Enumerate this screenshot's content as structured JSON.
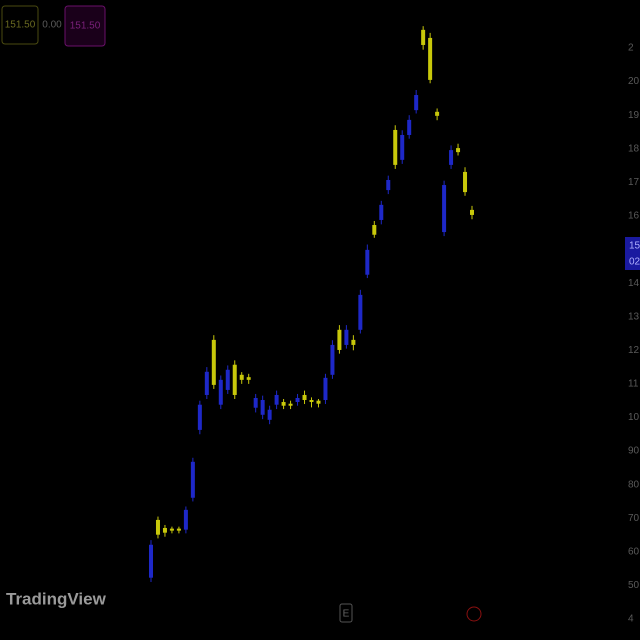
{
  "chart_data": {
    "type": "candlestick",
    "legend_values": [
      "151.50",
      "0.00",
      "151.50"
    ],
    "price_tag": [
      "15",
      "02"
    ],
    "logo": "TradingView",
    "event_marker": "E",
    "up_color": "#c8c80a",
    "down_color": "#1e28c8",
    "open": [
      62.1,
      65.1,
      65.7,
      66.3,
      66.3,
      72.5,
      86.8,
      103.8,
      113.6,
      109.7,
      111.2,
      114.2,
      106.7,
      111.2,
      111.2,
      105.8,
      105.2,
      102.3,
      106.7,
      103.5,
      103.5,
      105.8,
      105.2,
      104.6,
      104.1,
      111.8,
      121.6,
      120.1,
      126.1,
      121.6,
      136.5,
      149.9,
      154.4,
      163.3,
      170.7,
      175.2,
      184.1,
      188.6,
      196.0,
      210.9,
      200.5,
      189.8,
      169.2,
      179.6,
      179.0,
      167.1,
      160.3
    ],
    "high": [
      63.5,
      70.5,
      68.0,
      67.5,
      67.5,
      73.5,
      88.0,
      105.0,
      115.0,
      124.5,
      112.5,
      115.5,
      117.0,
      113.5,
      113.0,
      107.0,
      106.5,
      103.5,
      108.0,
      105.5,
      105.0,
      107.0,
      108.0,
      106.0,
      105.5,
      113.0,
      123.0,
      127.5,
      127.5,
      124.5,
      138.0,
      151.5,
      158.5,
      164.5,
      172.0,
      187.0,
      185.5,
      190.0,
      197.5,
      216.5,
      214.5,
      192.0,
      170.5,
      181.0,
      181.5,
      174.5,
      163.0
    ],
    "low": [
      51.0,
      64.0,
      64.5,
      65.5,
      65.5,
      65.5,
      75.0,
      95.0,
      105.5,
      108.5,
      102.5,
      107.0,
      105.5,
      110.0,
      110.0,
      101.5,
      99.5,
      98.0,
      102.5,
      102.5,
      102.5,
      103.5,
      104.0,
      103.0,
      103.0,
      104.0,
      111.5,
      119.0,
      120.5,
      120.0,
      125.0,
      141.5,
      153.5,
      157.5,
      166.5,
      174.0,
      175.5,
      183.0,
      190.5,
      209.5,
      199.5,
      188.5,
      154.0,
      174.0,
      178.0,
      166.0,
      159.0
    ],
    "close": [
      52.3,
      69.5,
      67.1,
      66.9,
      66.9,
      66.6,
      76.1,
      96.3,
      106.7,
      123.1,
      103.8,
      108.2,
      115.7,
      112.7,
      112.0,
      102.9,
      100.8,
      99.3,
      103.8,
      104.6,
      104.1,
      104.6,
      106.7,
      105.2,
      105.0,
      105.2,
      112.7,
      126.1,
      121.6,
      123.1,
      126.1,
      142.5,
      157.3,
      158.8,
      167.7,
      185.6,
      176.7,
      184.1,
      191.5,
      215.4,
      213.0,
      191.0,
      155.2,
      175.2,
      180.2,
      173.1,
      161.8
    ],
    "ylim": [
      40,
      210
    ],
    "yticks": [
      {
        "value": 210,
        "label": "2"
      },
      {
        "value": 200,
        "label": "20"
      },
      {
        "value": 190,
        "label": "19"
      },
      {
        "value": 180,
        "label": "18"
      },
      {
        "value": 170,
        "label": "17"
      },
      {
        "value": 160,
        "label": "16"
      },
      {
        "value": 140,
        "label": "14"
      },
      {
        "value": 130,
        "label": "13"
      },
      {
        "value": 120,
        "label": "12"
      },
      {
        "value": 110,
        "label": "11"
      },
      {
        "value": 100,
        "label": "10"
      },
      90,
      80,
      70,
      60,
      50,
      {
        "value": 40,
        "label": "4"
      }
    ]
  }
}
